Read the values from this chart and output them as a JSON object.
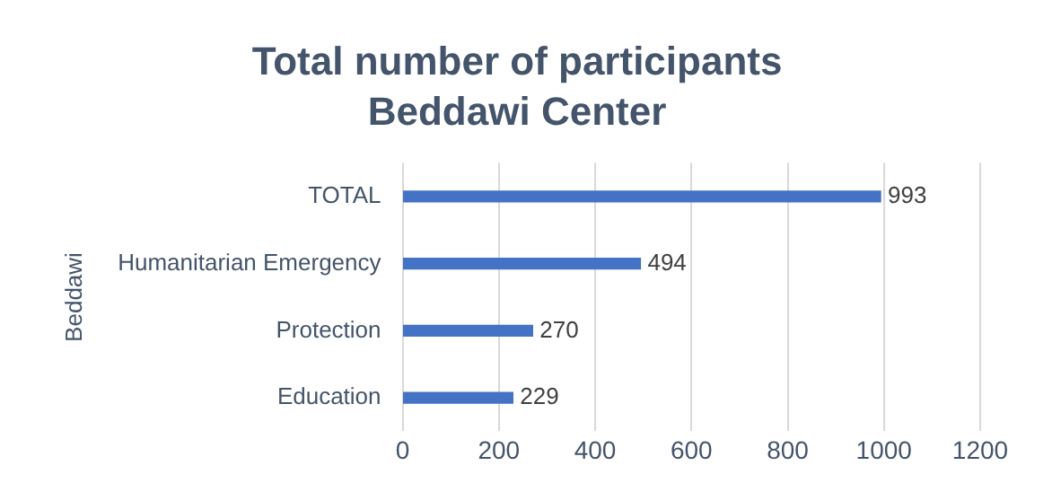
{
  "chart_data": {
    "type": "bar",
    "orientation": "horizontal",
    "title": "Total number of participants",
    "subtitle": "Beddawi Center",
    "ylabel": "Beddawi",
    "categories": [
      "TOTAL",
      "Humanitarian Emergency",
      "Protection",
      "Education"
    ],
    "values": [
      993,
      494,
      270,
      229
    ],
    "color": "#4472c4",
    "xlim": [
      0,
      1200
    ],
    "xticks": [
      0,
      200,
      400,
      600,
      800,
      1000,
      1200
    ],
    "grid": "x",
    "data_labels": true,
    "legend": false
  }
}
